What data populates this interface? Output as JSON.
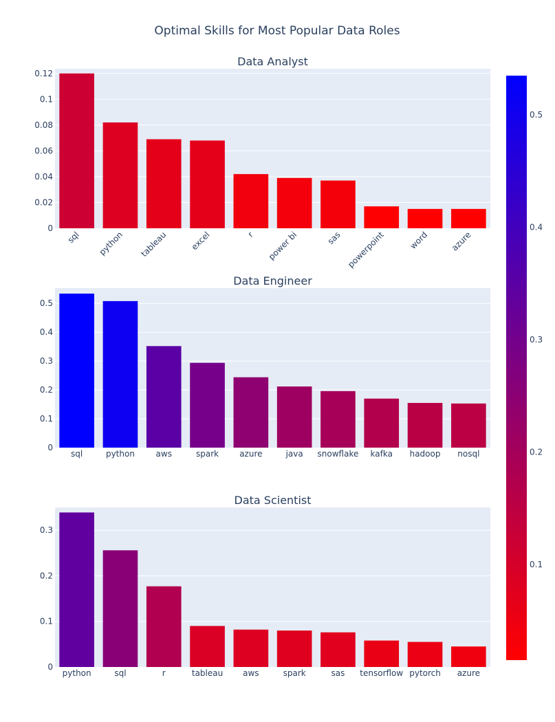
{
  "chart_data": {
    "type": "bar",
    "title": "Optimal Skills for Most Popular Data Roles",
    "colorscale": {
      "low": "#ff0000",
      "high": "#0000ff",
      "range": [
        0.015,
        0.535
      ],
      "ticks": [
        "0.1",
        "0.2",
        "0.3",
        "0.4",
        "0.5"
      ]
    },
    "subplots": [
      {
        "title": "Data Analyst",
        "categories": [
          "sql",
          "python",
          "tableau",
          "excel",
          "r",
          "power bi",
          "sas",
          "powerpoint",
          "word",
          "azure"
        ],
        "values": [
          0.12,
          0.082,
          0.069,
          0.068,
          0.042,
          0.039,
          0.037,
          0.017,
          0.015,
          0.015
        ],
        "ylim": [
          0,
          0.1236
        ],
        "yticks": [
          "0",
          "0.02",
          "0.04",
          "0.06",
          "0.08",
          "0.1",
          "0.12"
        ],
        "rotated_labels": true
      },
      {
        "title": "Data Engineer",
        "categories": [
          "sql",
          "python",
          "aws",
          "spark",
          "azure",
          "java",
          "snowflake",
          "kafka",
          "hadoop",
          "nosql"
        ],
        "values": [
          0.534,
          0.508,
          0.352,
          0.294,
          0.244,
          0.212,
          0.196,
          0.17,
          0.155,
          0.153
        ],
        "ylim": [
          0,
          0.553
        ],
        "yticks": [
          "0",
          "0.1",
          "0.2",
          "0.3",
          "0.4",
          "0.5"
        ],
        "rotated_labels": false
      },
      {
        "title": "Data Scientist",
        "categories": [
          "python",
          "sql",
          "r",
          "tableau",
          "aws",
          "spark",
          "sas",
          "tensorflow",
          "pytorch",
          "azure"
        ],
        "values": [
          0.339,
          0.256,
          0.177,
          0.09,
          0.082,
          0.08,
          0.076,
          0.058,
          0.055,
          0.045
        ],
        "ylim": [
          0,
          0.35
        ],
        "yticks": [
          "0",
          "0.1",
          "0.2",
          "0.3"
        ],
        "rotated_labels": false
      }
    ]
  }
}
